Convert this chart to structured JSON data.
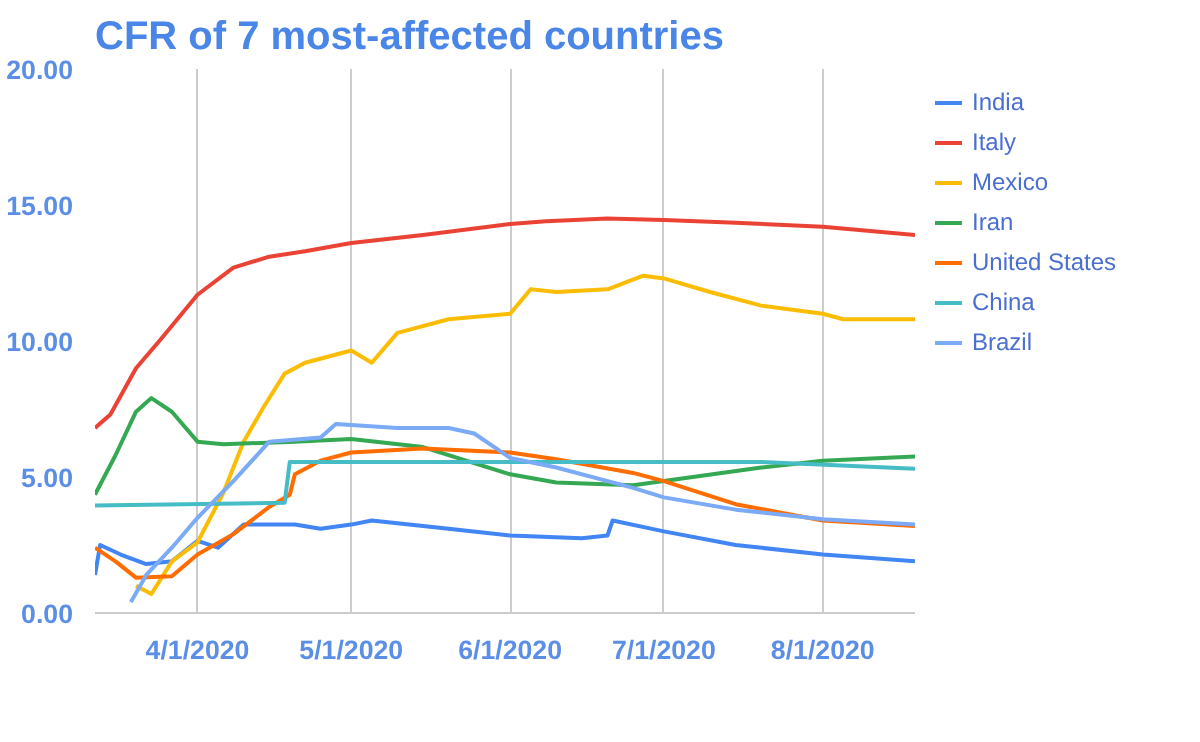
{
  "chart_data": {
    "type": "line",
    "title": "CFR of 7 most-affected countries",
    "xlim": [
      "2020-03-12",
      "2020-08-19"
    ],
    "xticks": [
      {
        "value": "2020-04-01",
        "label": "4/1/2020"
      },
      {
        "value": "2020-05-01",
        "label": "5/1/2020"
      },
      {
        "value": "2020-06-01",
        "label": "6/1/2020"
      },
      {
        "value": "2020-07-01",
        "label": "7/1/2020"
      },
      {
        "value": "2020-08-01",
        "label": "8/1/2020"
      }
    ],
    "ylim": [
      0,
      20
    ],
    "yticks": [
      {
        "value": 0,
        "label": "0.00"
      },
      {
        "value": 5,
        "label": "5.00"
      },
      {
        "value": 10,
        "label": "10.00"
      },
      {
        "value": 15,
        "label": "15.00"
      },
      {
        "value": 20,
        "label": "20.00"
      }
    ],
    "grid": "x",
    "legend": "right",
    "marker": "none",
    "line_style": "solid",
    "series": [
      {
        "name": "India",
        "color": "#4285f4",
        "x": [
          "2020-03-12",
          "2020-03-13",
          "2020-03-17",
          "2020-03-22",
          "2020-03-27",
          "2020-04-01",
          "2020-04-05",
          "2020-04-10",
          "2020-04-20",
          "2020-04-25",
          "2020-05-01",
          "2020-05-05",
          "2020-05-20",
          "2020-06-01",
          "2020-06-15",
          "2020-06-20",
          "2020-06-21",
          "2020-07-01",
          "2020-07-15",
          "2020-08-01",
          "2020-08-19"
        ],
        "values": [
          1.4,
          2.5,
          2.15,
          1.8,
          1.9,
          2.65,
          2.4,
          3.25,
          3.25,
          3.1,
          3.25,
          3.4,
          3.1,
          2.85,
          2.75,
          2.85,
          3.4,
          3.0,
          2.5,
          2.15,
          1.9
        ]
      },
      {
        "name": "Italy",
        "color": "#ea4335",
        "x": [
          "2020-03-12",
          "2020-03-15",
          "2020-03-20",
          "2020-03-25",
          "2020-04-01",
          "2020-04-08",
          "2020-04-15",
          "2020-04-22",
          "2020-05-01",
          "2020-05-15",
          "2020-06-01",
          "2020-06-08",
          "2020-06-20",
          "2020-07-01",
          "2020-07-15",
          "2020-08-01",
          "2020-08-19"
        ],
        "values": [
          6.8,
          7.3,
          9.0,
          10.1,
          11.7,
          12.7,
          13.1,
          13.3,
          13.6,
          13.9,
          14.3,
          14.4,
          14.5,
          14.45,
          14.35,
          14.2,
          13.9
        ]
      },
      {
        "name": "Mexico",
        "color": "#fbbc04",
        "x": [
          "2020-03-20",
          "2020-03-23",
          "2020-03-27",
          "2020-04-01",
          "2020-04-06",
          "2020-04-10",
          "2020-04-14",
          "2020-04-18",
          "2020-04-22",
          "2020-05-01",
          "2020-05-05",
          "2020-05-10",
          "2020-05-20",
          "2020-06-01",
          "2020-06-05",
          "2020-06-10",
          "2020-06-20",
          "2020-06-27",
          "2020-07-01",
          "2020-07-10",
          "2020-07-20",
          "2020-08-01",
          "2020-08-05",
          "2020-08-19"
        ],
        "values": [
          1.0,
          0.7,
          1.9,
          2.6,
          4.4,
          6.3,
          7.6,
          8.8,
          9.2,
          9.65,
          9.2,
          10.3,
          10.8,
          11.0,
          11.9,
          11.8,
          11.9,
          12.4,
          12.3,
          11.8,
          11.3,
          11.0,
          10.8,
          10.8
        ]
      },
      {
        "name": "Iran",
        "color": "#34a853",
        "x": [
          "2020-03-12",
          "2020-03-16",
          "2020-03-20",
          "2020-03-23",
          "2020-03-27",
          "2020-04-01",
          "2020-04-06",
          "2020-04-20",
          "2020-05-01",
          "2020-05-15",
          "2020-06-01",
          "2020-06-10",
          "2020-06-25",
          "2020-07-01",
          "2020-07-20",
          "2020-08-01",
          "2020-08-19"
        ],
        "values": [
          4.35,
          5.8,
          7.4,
          7.9,
          7.4,
          6.3,
          6.2,
          6.3,
          6.4,
          6.1,
          5.1,
          4.8,
          4.7,
          4.85,
          5.35,
          5.6,
          5.75
        ]
      },
      {
        "name": "United States",
        "color": "#ff6d01",
        "x": [
          "2020-03-12",
          "2020-03-16",
          "2020-03-20",
          "2020-03-27",
          "2020-04-01",
          "2020-04-08",
          "2020-04-15",
          "2020-04-19",
          "2020-04-20",
          "2020-04-25",
          "2020-05-01",
          "2020-05-15",
          "2020-06-01",
          "2020-06-10",
          "2020-06-25",
          "2020-07-01",
          "2020-07-15",
          "2020-08-01",
          "2020-08-19"
        ],
        "values": [
          2.4,
          1.9,
          1.3,
          1.35,
          2.15,
          2.9,
          3.9,
          4.35,
          5.1,
          5.6,
          5.9,
          6.05,
          5.9,
          5.65,
          5.15,
          4.85,
          4.0,
          3.4,
          3.2
        ]
      },
      {
        "name": "China",
        "color": "#46bdc6",
        "x": [
          "2020-03-12",
          "2020-04-18",
          "2020-04-19",
          "2020-07-20",
          "2020-08-19"
        ],
        "values": [
          3.95,
          4.05,
          5.55,
          5.55,
          5.3
        ]
      },
      {
        "name": "Brazil",
        "color": "#7baaf7",
        "x": [
          "2020-03-19",
          "2020-03-22",
          "2020-03-27",
          "2020-04-01",
          "2020-04-08",
          "2020-04-15",
          "2020-04-25",
          "2020-04-28",
          "2020-05-10",
          "2020-05-20",
          "2020-05-25",
          "2020-06-01",
          "2020-06-10",
          "2020-06-25",
          "2020-07-01",
          "2020-07-15",
          "2020-08-01",
          "2020-08-19"
        ],
        "values": [
          0.4,
          1.4,
          2.4,
          3.5,
          4.85,
          6.3,
          6.45,
          6.95,
          6.8,
          6.8,
          6.6,
          5.7,
          5.35,
          4.6,
          4.25,
          3.8,
          3.45,
          3.25
        ]
      }
    ]
  }
}
